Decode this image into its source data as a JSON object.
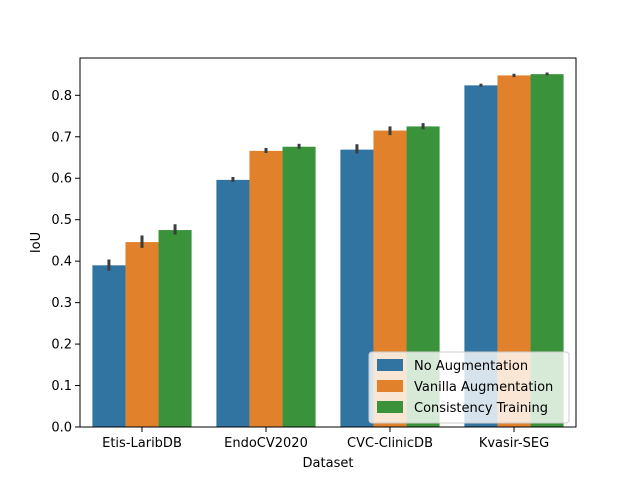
{
  "chart_data": {
    "type": "bar",
    "title": "",
    "xlabel": "Dataset",
    "ylabel": "IoU",
    "ylim": [
      0,
      0.89
    ],
    "yticks": [
      "0.0",
      "0.1",
      "0.2",
      "0.3",
      "0.4",
      "0.5",
      "0.6",
      "0.7",
      "0.8"
    ],
    "categories": [
      "Etis-LaribDB",
      "EndoCV2020",
      "CVC-ClinicDB",
      "Kvasir-SEG"
    ],
    "grid": false,
    "legend_position": "lower-right",
    "series": [
      {
        "name": "No Augmentation",
        "color": "#3274a1",
        "values": [
          0.39,
          0.596,
          0.669,
          0.824
        ],
        "error": [
          [
            0.377,
            0.404
          ],
          [
            0.591,
            0.603
          ],
          [
            0.66,
            0.682
          ],
          [
            0.821,
            0.828
          ]
        ]
      },
      {
        "name": "Vanilla Augmentation",
        "color": "#e1812c",
        "values": [
          0.446,
          0.666,
          0.715,
          0.848
        ],
        "error": [
          [
            0.432,
            0.462
          ],
          [
            0.661,
            0.673
          ],
          [
            0.704,
            0.725
          ],
          [
            0.844,
            0.852
          ]
        ]
      },
      {
        "name": "Consistency Training",
        "color": "#3a923a",
        "values": [
          0.475,
          0.676,
          0.725,
          0.851
        ],
        "error": [
          [
            0.464,
            0.489
          ],
          [
            0.671,
            0.683
          ],
          [
            0.718,
            0.733
          ],
          [
            0.848,
            0.855
          ]
        ]
      }
    ]
  }
}
